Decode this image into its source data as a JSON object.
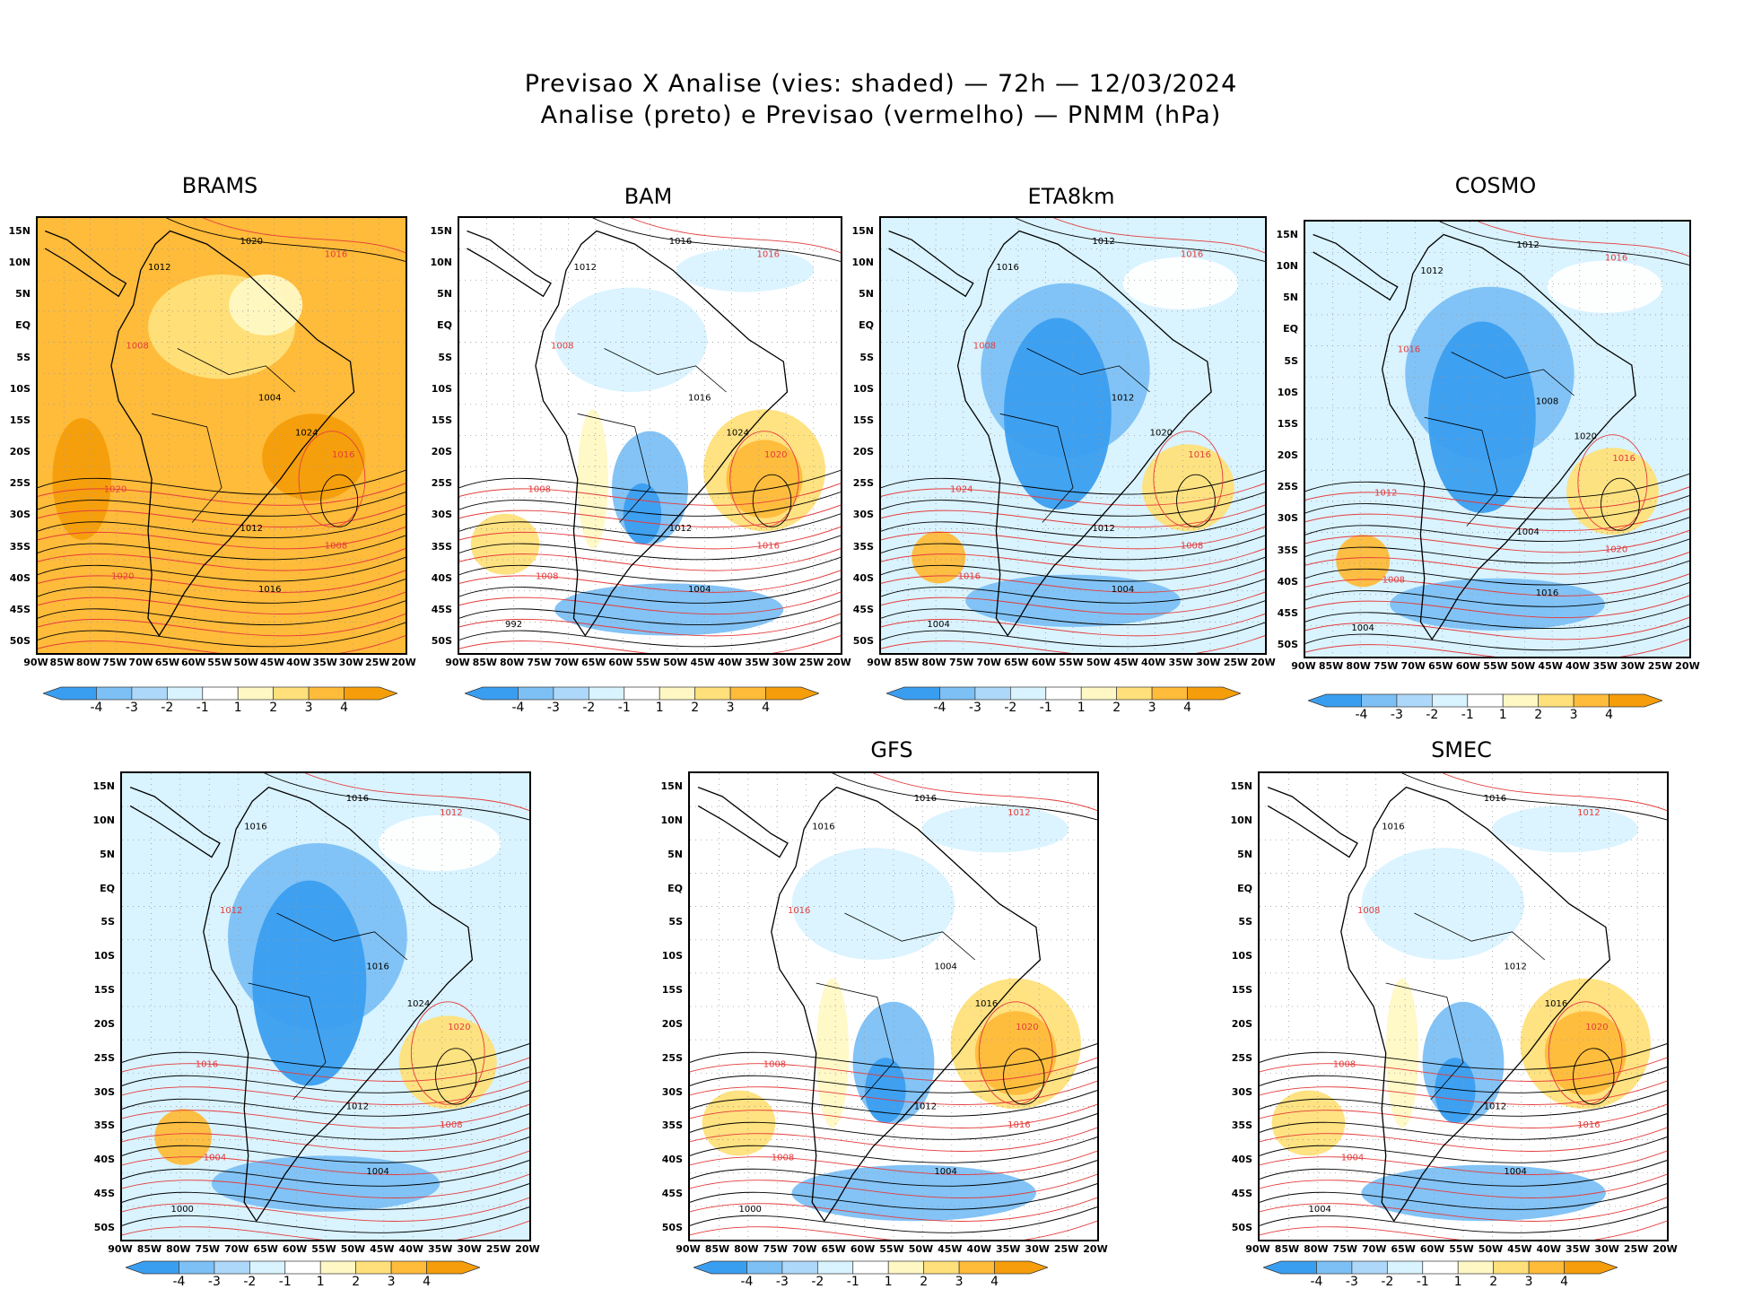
{
  "header": {
    "line1": "Previsao X Analise (vies: shaded) — 72h — 12/03/2024",
    "line2": "Analise (preto) e Previsao (vermelho) — PNMM (hPa)"
  },
  "lat_labels": [
    "15N",
    "10N",
    "5N",
    "EQ",
    "5S",
    "10S",
    "15S",
    "20S",
    "25S",
    "30S",
    "35S",
    "40S",
    "45S",
    "50S"
  ],
  "lon_labels": [
    "90W",
    "85W",
    "80W",
    "75W",
    "70W",
    "65W",
    "60W",
    "55W",
    "50W",
    "45W",
    "40W",
    "35W",
    "30W",
    "25W",
    "20W"
  ],
  "colorbar_labels": [
    "-4",
    "-3",
    "-2",
    "-1",
    "1",
    "2",
    "3",
    "4"
  ],
  "colors": {
    "bias_bins": [
      "#3a9ef0",
      "#7cc0f5",
      "#aed8fa",
      "#d9f3ff",
      "#ffffff",
      "#fff8c4",
      "#ffe07a",
      "#ffbb3a",
      "#f59d0a"
    ],
    "analysis_contour": "#000000",
    "forecast_contour": "#e33b3b"
  },
  "panels": [
    {
      "name": "BRAMS",
      "style": "warm",
      "labels": [
        "1020",
        "1016",
        "1012",
        "1008",
        "1004",
        "1016",
        "1024",
        "1020",
        "1012",
        "1008",
        "1016",
        "1020"
      ]
    },
    {
      "name": "BAM",
      "style": "mixed",
      "labels": [
        "1016",
        "1016",
        "1012",
        "1008",
        "1016",
        "1020",
        "1024",
        "1008",
        "1012",
        "1016",
        "1004",
        "1008",
        "992"
      ]
    },
    {
      "name": "ETA8km",
      "style": "cool",
      "labels": [
        "1012",
        "1016",
        "1016",
        "1008",
        "1012",
        "1016",
        "1020",
        "1024",
        "1012",
        "1008",
        "1004",
        "1016",
        "1004"
      ]
    },
    {
      "name": "COSMO",
      "style": "cool",
      "labels": [
        "1012",
        "1016",
        "1012",
        "1016",
        "1008",
        "1016",
        "1020",
        "1012",
        "1004",
        "1020",
        "1016",
        "1008",
        "1004"
      ]
    },
    {
      "name": "",
      "style": "cool",
      "labels": [
        "1016",
        "1012",
        "1016",
        "1012",
        "1016",
        "1020",
        "1024",
        "1016",
        "1012",
        "1008",
        "1004",
        "1004",
        "1000"
      ]
    },
    {
      "name": "GFS",
      "style": "mixed",
      "labels": [
        "1016",
        "1012",
        "1016",
        "1016",
        "1004",
        "1020",
        "1016",
        "1008",
        "1012",
        "1016",
        "1004",
        "1008",
        "1000"
      ]
    },
    {
      "name": "SMEC",
      "style": "mixed",
      "labels": [
        "1016",
        "1012",
        "1016",
        "1008",
        "1012",
        "1020",
        "1016",
        "1008",
        "1012",
        "1016",
        "1004",
        "1004",
        "1004"
      ]
    }
  ]
}
